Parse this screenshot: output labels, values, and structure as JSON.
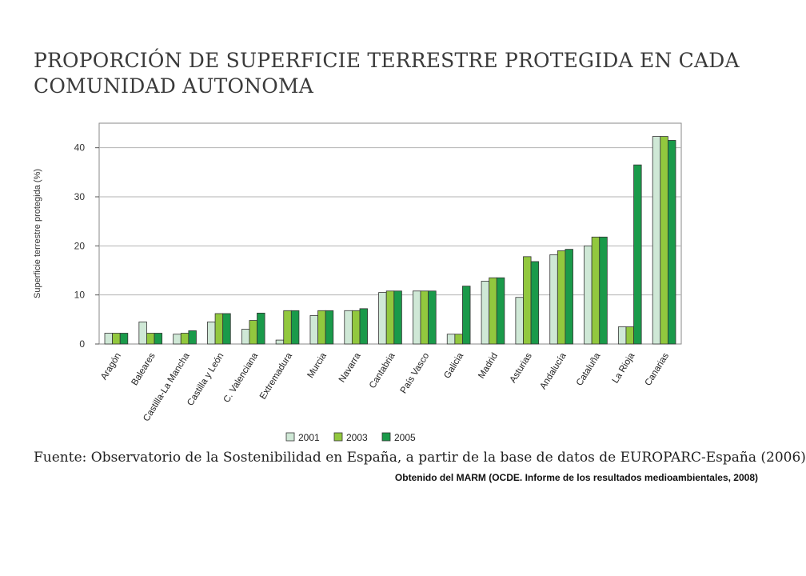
{
  "page": {
    "title_line1": "PROPORCIÓN DE SUPERFICIE TERRESTRE PROTEGIDA EN CADA",
    "title_line2": "COMUNIDAD AUTONOMA",
    "source": "Fuente: Observatorio de la Sostenibilidad en España, a partir de la base de datos de EUROPARC-España (2006)",
    "note": "Obtenido del MARM (OCDE. Informe de los resultados medioambientales, 2008)"
  },
  "chart_data": {
    "type": "bar",
    "ylabel": "Superficie terrestre protegida (%)",
    "ylim": [
      0,
      45
    ],
    "yticks": [
      0,
      10,
      20,
      30,
      40
    ],
    "grid": true,
    "legend_position": "bottom",
    "categories": [
      "Aragón",
      "Baleares",
      "Castilla-La Mancha",
      "Castilla y León",
      "C. Valenciana",
      "Extremadura",
      "Murcia",
      "Navarra",
      "Cantabria",
      "País Vasco",
      "Galicia",
      "Madrid",
      "Asturias",
      "Andalucía",
      "Cataluña",
      "La Rioja",
      "Canarias"
    ],
    "series": [
      {
        "name": "2001",
        "color": "#cfe8d6",
        "values": [
          2.2,
          4.5,
          2.0,
          4.5,
          3.0,
          0.8,
          5.8,
          6.8,
          10.5,
          10.8,
          2.0,
          12.8,
          9.5,
          18.2,
          20.0,
          3.5,
          42.3
        ]
      },
      {
        "name": "2003",
        "color": "#92c83e",
        "values": [
          2.2,
          2.2,
          2.2,
          6.2,
          4.8,
          6.8,
          6.8,
          6.8,
          10.8,
          10.8,
          2.0,
          13.5,
          17.8,
          19.0,
          21.8,
          3.5,
          42.3
        ]
      },
      {
        "name": "2005",
        "color": "#1a9a4a",
        "values": [
          2.2,
          2.2,
          2.7,
          6.2,
          6.3,
          6.8,
          6.8,
          7.2,
          10.8,
          10.8,
          11.8,
          13.5,
          16.8,
          19.3,
          21.8,
          36.5,
          41.5
        ]
      }
    ]
  }
}
